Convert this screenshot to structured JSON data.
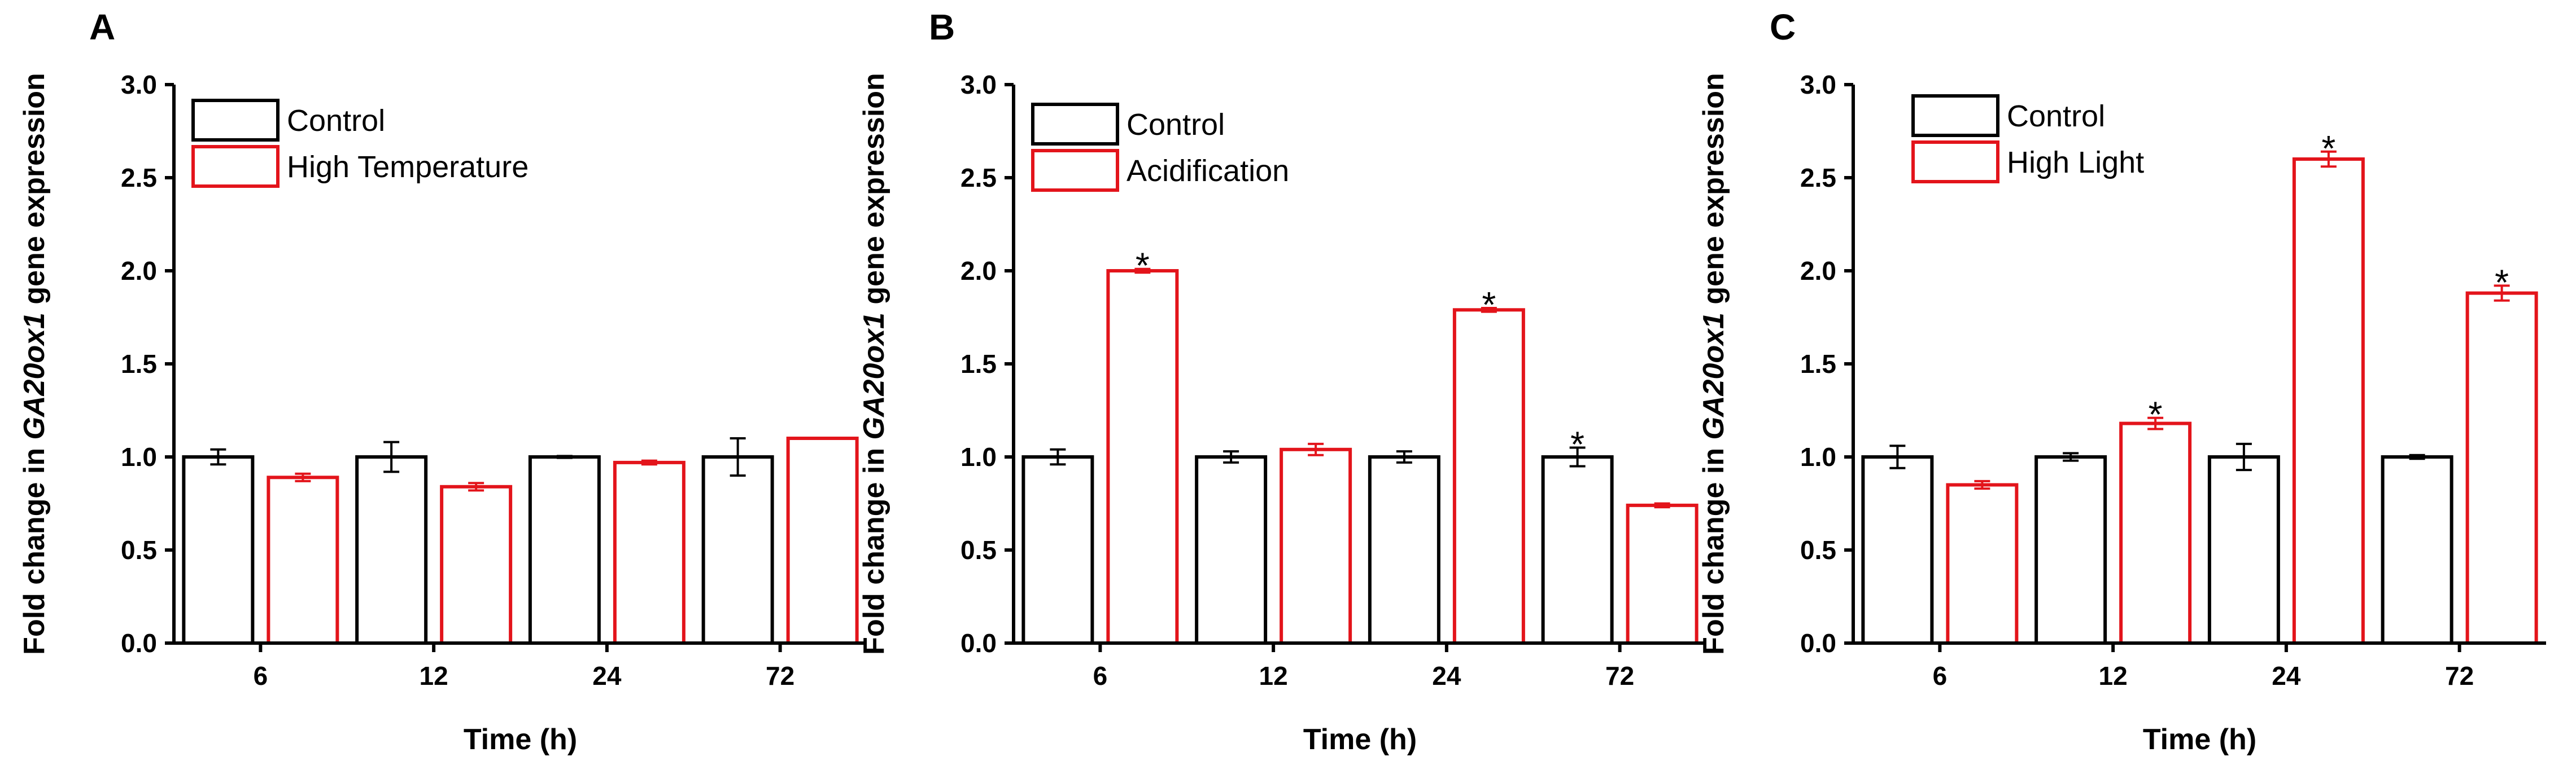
{
  "colors": {
    "control": "#000000",
    "treatment": "#e3141b"
  },
  "chart_data": [
    {
      "panel": "A",
      "type": "bar",
      "categories": [
        "6",
        "12",
        "24",
        "72"
      ],
      "xlabel": "Time (h)",
      "ylabel_prefix": "Fold change in ",
      "ylabel_gene": "GA20ox1",
      "ylabel_suffix": " gene expression",
      "ylim": [
        0,
        3
      ],
      "yticks": [
        "0.0",
        "0.5",
        "1.0",
        "1.5",
        "2.0",
        "2.5",
        "3.0"
      ],
      "series": [
        {
          "name": "Control",
          "values": [
            1.0,
            1.0,
            1.0,
            1.0
          ],
          "errors": [
            0.04,
            0.08,
            0.005,
            0.1
          ],
          "sig": [
            false,
            false,
            false,
            false
          ]
        },
        {
          "name": "High Temperature",
          "values": [
            0.89,
            0.84,
            0.97,
            1.1
          ],
          "errors": [
            0.02,
            0.02,
            0.01,
            0.0
          ],
          "sig": [
            false,
            false,
            false,
            false
          ]
        }
      ]
    },
    {
      "panel": "B",
      "type": "bar",
      "categories": [
        "6",
        "12",
        "24",
        "72"
      ],
      "xlabel": "Time (h)",
      "ylabel_prefix": "Fold change in ",
      "ylabel_gene": "GA20ox1",
      "ylabel_suffix": " gene expression",
      "ylim": [
        0,
        3
      ],
      "yticks": [
        "0.0",
        "0.5",
        "1.0",
        "1.5",
        "2.0",
        "2.5",
        "3.0"
      ],
      "series": [
        {
          "name": "Control",
          "values": [
            1.0,
            1.0,
            1.0,
            1.0
          ],
          "errors": [
            0.04,
            0.03,
            0.03,
            0.05
          ],
          "sig": [
            false,
            false,
            false,
            true
          ]
        },
        {
          "name": "Acidification",
          "values": [
            2.0,
            1.04,
            1.79,
            0.74
          ],
          "errors": [
            0.01,
            0.03,
            0.01,
            0.01
          ],
          "sig": [
            true,
            false,
            true,
            false
          ]
        }
      ]
    },
    {
      "panel": "C",
      "type": "bar",
      "categories": [
        "6",
        "12",
        "24",
        "72"
      ],
      "xlabel": "Time (h)",
      "ylabel_prefix": "Fold change in ",
      "ylabel_gene": "GA20ox1",
      "ylabel_suffix": " gene expression",
      "ylim": [
        0,
        3
      ],
      "yticks": [
        "0.0",
        "0.5",
        "1.0",
        "1.5",
        "2.0",
        "2.5",
        "3.0"
      ],
      "series": [
        {
          "name": "Control",
          "values": [
            1.0,
            1.0,
            1.0,
            1.0
          ],
          "errors": [
            0.06,
            0.02,
            0.07,
            0.01
          ],
          "sig": [
            false,
            false,
            false,
            false
          ]
        },
        {
          "name": "High Light",
          "values": [
            0.85,
            1.18,
            2.6,
            1.88
          ],
          "errors": [
            0.02,
            0.03,
            0.04,
            0.04
          ],
          "sig": [
            false,
            true,
            true,
            true
          ]
        }
      ]
    }
  ]
}
